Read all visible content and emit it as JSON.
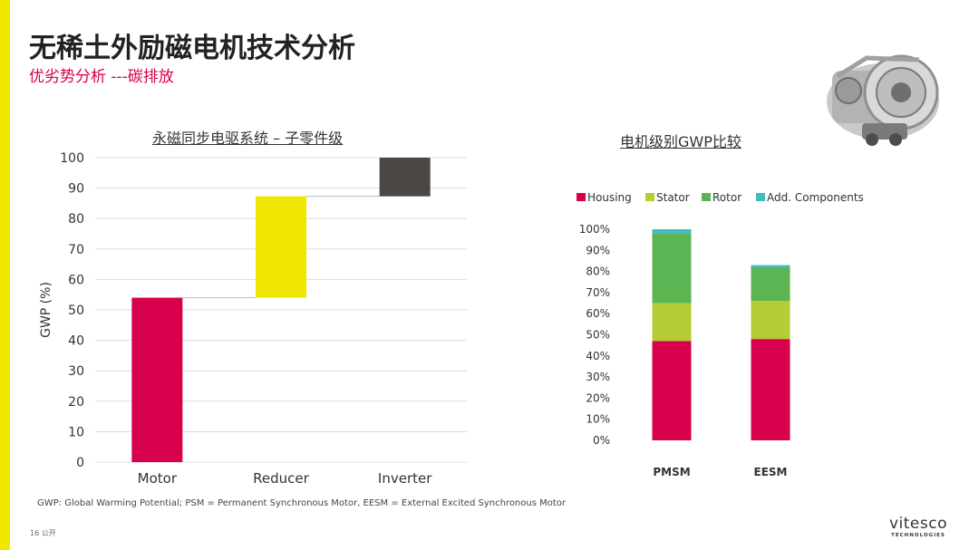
{
  "slide": {
    "title": "无稀土外励磁电机技术分析",
    "subtitle": "优劣势分析 ---碳排放",
    "footnote": "GWP: Global Warming Potential; PSM = Permanent Synchronous Motor, EESM = External Excited Synchronous Motor",
    "page_number": "16  公开",
    "logo_main": "vitesco",
    "logo_sub": "TECHNOLOGIES"
  },
  "colors": {
    "accent": "#f0e600",
    "brand": "#d6004c"
  },
  "chart_data": [
    {
      "type": "bar",
      "subtype": "waterfall",
      "title": "永磁同步电驱系统 – 子零件级",
      "ylabel": "GWP (%)",
      "xlabel": "",
      "ylim": [
        0,
        100
      ],
      "yticks": [
        0,
        10,
        20,
        30,
        40,
        50,
        60,
        70,
        80,
        90,
        100
      ],
      "grid": true,
      "categories": [
        "Motor",
        "Reducer",
        "Inverter"
      ],
      "segments": [
        {
          "category": "Motor",
          "start": 0,
          "end": 54,
          "color": "#d6004c"
        },
        {
          "category": "Reducer",
          "start": 54,
          "end": 87.3,
          "color": "#f0e600"
        },
        {
          "category": "Inverter",
          "start": 87.3,
          "end": 100,
          "color": "#4a4744"
        }
      ]
    },
    {
      "type": "bar",
      "subtype": "stacked",
      "title": "电机级别GWP比较",
      "legend_position": "top",
      "ylim": [
        0,
        1
      ],
      "yticks": [
        "0%",
        "10%",
        "20%",
        "30%",
        "40%",
        "50%",
        "60%",
        "70%",
        "80%",
        "90%",
        "100%"
      ],
      "categories": [
        "PMSM",
        "EESM"
      ],
      "series": [
        {
          "name": "Housing",
          "color": "#d6004c",
          "values": [
            0.47,
            0.48
          ]
        },
        {
          "name": "Stator",
          "color": "#b5cc35",
          "values": [
            0.18,
            0.18
          ]
        },
        {
          "name": "Rotor",
          "color": "#5ab552",
          "values": [
            0.33,
            0.16
          ]
        },
        {
          "name": "Add. Components",
          "color": "#3dbdbd",
          "values": [
            0.02,
            0.01
          ]
        }
      ]
    }
  ]
}
